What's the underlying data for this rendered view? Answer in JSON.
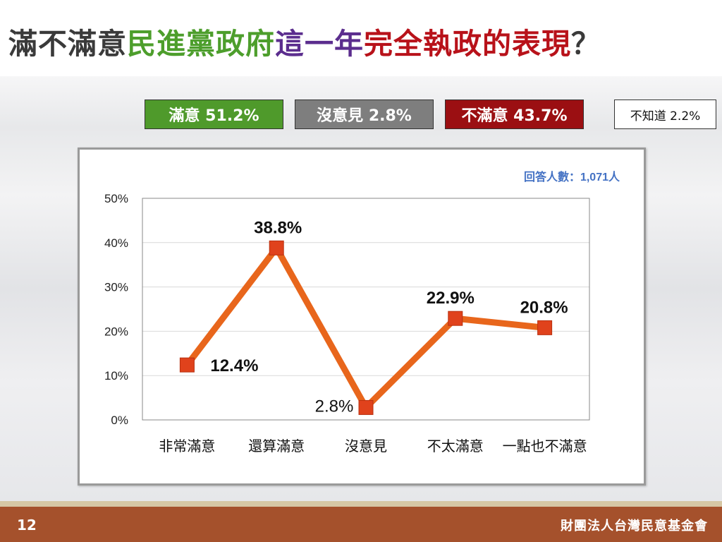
{
  "title": {
    "segments": [
      {
        "text": "滿不滿意",
        "color": "#3a3a3a"
      },
      {
        "text": "民進黨政府",
        "color": "#4d9e2c"
      },
      {
        "text": "這一年",
        "color": "#5b2d8e"
      },
      {
        "text": "完全執政的表現",
        "color": "#b8121a"
      },
      {
        "text": "？",
        "color": "#3a3a3a"
      }
    ]
  },
  "legend": {
    "satisfied": "滿意 51.2%",
    "no_opinion": "沒意見 2.8%",
    "unsatisfied": "不滿意 43.7%",
    "dont_know": "不知道 2.2%"
  },
  "sample_note": "回答人數：1,071人",
  "colors": {
    "line": "#e8661c",
    "marker": "#e0421c",
    "note": "#4472c4"
  },
  "chart_data": {
    "type": "line",
    "categories": [
      "非常滿意",
      "還算滿意",
      "沒意見",
      "不太滿意",
      "一點也不滿意"
    ],
    "values": [
      12.4,
      38.8,
      2.8,
      22.9,
      20.8
    ],
    "data_labels": [
      "12.4%",
      "38.8%",
      "2.8%",
      "22.9%",
      "20.8%"
    ],
    "y_ticks": [
      "0%",
      "10%",
      "20%",
      "30%",
      "40%",
      "50%"
    ],
    "ylim": [
      0,
      50
    ],
    "grid": true
  },
  "footer": {
    "page_number": "12",
    "organization": "財團法人台灣民意基金會"
  }
}
